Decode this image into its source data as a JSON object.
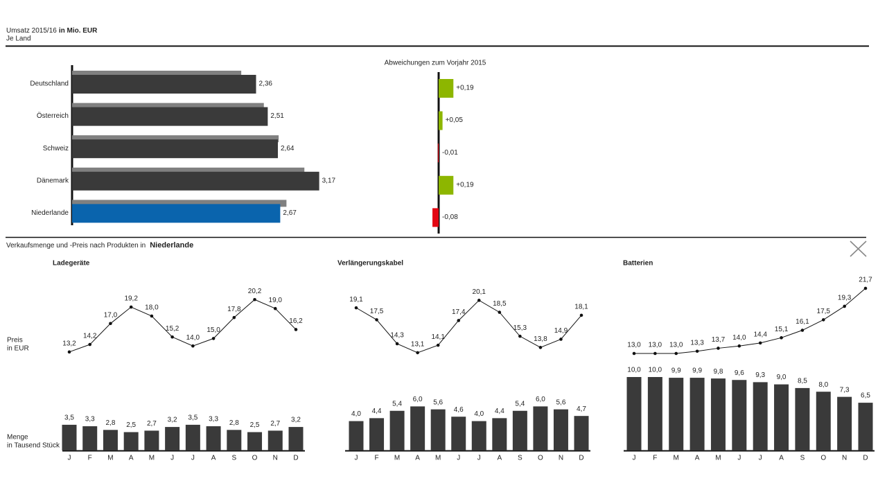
{
  "header": {
    "title": "Umsatz 2015/16",
    "title_unit": "in Mio. EUR",
    "subtitle": "Je Land"
  },
  "section": {
    "title": "Verkaufsmenge und -Preis nach Produkten in",
    "country": "Niederlande",
    "price_label": [
      "Preis",
      "in EUR"
    ],
    "quantity_label": [
      "Menge",
      "in Tausend Stück"
    ]
  },
  "chart_data": [
    {
      "type": "hbar_overlay",
      "categories": [
        "Deutschland",
        "Österreich",
        "Schweiz",
        "Dänemark",
        "Niederlande"
      ],
      "series": [
        {
          "color": "#808080",
          "values": [
            2.17,
            2.46,
            2.65,
            2.98,
            2.75
          ]
        },
        {
          "colors": [
            "#3a3a3a",
            "#3a3a3a",
            "#3a3a3a",
            "#3a3a3a",
            "#0a64ad"
          ],
          "values": [
            2.36,
            2.51,
            2.64,
            3.17,
            2.67
          ],
          "value_labels": [
            "2,36",
            "2,51",
            "2,64",
            "3,17",
            "2,67"
          ]
        }
      ]
    },
    {
      "type": "hbar_deviation",
      "title": "Abweichungen zum Vorjahr 2015",
      "values": [
        0.19,
        0.05,
        -0.01,
        0.19,
        -0.08
      ],
      "value_labels": [
        "+0,19",
        "+0,05",
        "-0,01",
        "+0,19",
        "-0,08"
      ],
      "colors": [
        "#8db600",
        "#8db600",
        "#e30613",
        "#8db600",
        "#e30613"
      ]
    },
    {
      "type": "bar_line",
      "title": "Ladegeräte",
      "categories": [
        "J",
        "F",
        "M",
        "A",
        "M",
        "J",
        "J",
        "A",
        "S",
        "O",
        "N",
        "D"
      ],
      "price": {
        "values": [
          13.2,
          14.2,
          17.0,
          19.2,
          18.0,
          15.2,
          14.0,
          15.0,
          17.8,
          20.2,
          19.0,
          16.2
        ],
        "value_labels": [
          "13,2",
          "14,2",
          "17,0",
          "19,2",
          "18,0",
          "15,2",
          "14,0",
          "15,0",
          "17,8",
          "20,2",
          "19,0",
          "16,2"
        ]
      },
      "quantity": {
        "color": "#3a3a3a",
        "values": [
          3.5,
          3.3,
          2.8,
          2.5,
          2.7,
          3.2,
          3.5,
          3.3,
          2.8,
          2.5,
          2.7,
          3.2
        ],
        "value_labels": [
          "3,5",
          "3,3",
          "2,8",
          "2,5",
          "2,7",
          "3,2",
          "3,5",
          "3,3",
          "2,8",
          "2,5",
          "2,7",
          "3,2"
        ]
      }
    },
    {
      "type": "bar_line",
      "title": "Verlängerungskabel",
      "categories": [
        "J",
        "F",
        "M",
        "A",
        "M",
        "J",
        "J",
        "A",
        "S",
        "O",
        "N",
        "D"
      ],
      "price": {
        "values": [
          19.1,
          17.5,
          14.3,
          13.1,
          14.1,
          17.4,
          20.1,
          18.5,
          15.3,
          13.8,
          14.9,
          18.1
        ],
        "value_labels": [
          "19,1",
          "17,5",
          "14,3",
          "13,1",
          "14,1",
          "17,4",
          "20,1",
          "18,5",
          "15,3",
          "13,8",
          "14,9",
          "18,1"
        ]
      },
      "quantity": {
        "color": "#3a3a3a",
        "values": [
          4.0,
          4.4,
          5.4,
          6.0,
          5.6,
          4.6,
          4.0,
          4.4,
          5.4,
          6.0,
          5.6,
          4.7
        ],
        "value_labels": [
          "4,0",
          "4,4",
          "5,4",
          "6,0",
          "5,6",
          "4,6",
          "4,0",
          "4,4",
          "5,4",
          "6,0",
          "5,6",
          "4,7"
        ]
      }
    },
    {
      "type": "bar_line",
      "title": "Batterien",
      "categories": [
        "J",
        "F",
        "M",
        "A",
        "M",
        "J",
        "J",
        "A",
        "S",
        "O",
        "N",
        "D"
      ],
      "price": {
        "values": [
          13.0,
          13.0,
          13.0,
          13.3,
          13.7,
          14.0,
          14.4,
          15.1,
          16.1,
          17.5,
          19.3,
          21.7
        ],
        "value_labels": [
          "13,0",
          "13,0",
          "13,0",
          "13,3",
          "13,7",
          "14,0",
          "14,4",
          "15,1",
          "16,1",
          "17,5",
          "19,3",
          "21,7"
        ]
      },
      "quantity": {
        "color": "#3a3a3a",
        "values": [
          10.0,
          10.0,
          9.9,
          9.9,
          9.8,
          9.6,
          9.3,
          9.0,
          8.5,
          8.0,
          7.3,
          6.5
        ],
        "value_labels": [
          "10,0",
          "10,0",
          "9,9",
          "9,9",
          "9,8",
          "9,6",
          "9,3",
          "9,0",
          "8,5",
          "8,0",
          "7,3",
          "6,5"
        ]
      }
    }
  ]
}
